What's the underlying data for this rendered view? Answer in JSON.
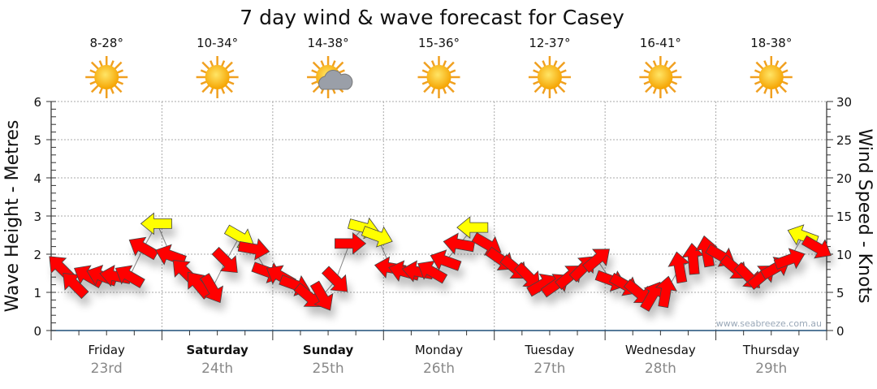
{
  "chart_data": {
    "type": "scatter",
    "title": "7 day wind & wave forecast for Casey",
    "ylabel_left": "Wave Height - Metres",
    "ylabel_right": "Wind Speed - Knots",
    "ylim_left": [
      0,
      6
    ],
    "ylim_right": [
      0,
      30
    ],
    "yticks_left": [
      "0",
      "1",
      "2",
      "3",
      "4",
      "5",
      "6"
    ],
    "yticks_right": [
      "0",
      "5",
      "10",
      "15",
      "20",
      "25",
      "30"
    ],
    "grid": true,
    "watermark": "www.seabreeze.com.au",
    "days": [
      {
        "name": "Friday",
        "date": "23rd",
        "temp": "8-28°",
        "icon": "sun-icon",
        "bold": false
      },
      {
        "name": "Saturday",
        "date": "24th",
        "temp": "10-34°",
        "icon": "sun-icon",
        "bold": true
      },
      {
        "name": "Sunday",
        "date": "25th",
        "temp": "14-38°",
        "icon": "sun-cloud-icon",
        "bold": true
      },
      {
        "name": "Monday",
        "date": "26th",
        "temp": "15-36°",
        "icon": "sun-icon",
        "bold": false
      },
      {
        "name": "Tuesday",
        "date": "27th",
        "temp": "12-37°",
        "icon": "sun-icon",
        "bold": false
      },
      {
        "name": "Wednesday",
        "date": "28th",
        "temp": "16-41°",
        "icon": "sun-icon",
        "bold": false
      },
      {
        "name": "Thursday",
        "date": "29th",
        "temp": "18-38°",
        "icon": "sun-icon",
        "bold": false
      }
    ],
    "wind_knots": [
      8.2,
      6.0,
      7.1,
      7.1,
      7.1,
      7.1,
      10.8,
      14.0,
      9.8,
      7.7,
      6.0,
      5.5,
      9.1,
      12.3,
      10.7,
      7.7,
      7.1,
      6.0,
      4.5,
      4.5,
      6.6,
      11.4,
      13.5,
      12.4,
      8.2,
      7.7,
      7.7,
      7.7,
      9.1,
      11.3,
      13.5,
      11.3,
      9.3,
      8.2,
      7.1,
      6.0,
      6.0,
      7.1,
      8.2,
      9.3,
      6.6,
      6.0,
      5.0,
      4.5,
      5.0,
      8.2,
      9.3,
      10.3,
      9.8,
      8.2,
      7.1,
      7.1,
      8.2,
      9.3,
      12.4,
      10.9
    ],
    "wind_arrow_angle_deg": [
      135,
      135,
      150,
      160,
      170,
      150,
      150,
      180,
      160,
      135,
      130,
      -60,
      -45,
      -30,
      -10,
      -20,
      150,
      -20,
      -40,
      -60,
      -45,
      0,
      -15,
      -20,
      170,
      165,
      170,
      150,
      160,
      170,
      180,
      -30,
      -35,
      -40,
      -45,
      30,
      35,
      40,
      45,
      40,
      -20,
      -30,
      -40,
      60,
      80,
      100,
      95,
      100,
      -30,
      -40,
      -45,
      40,
      30,
      20,
      160,
      -30
    ],
    "colors": {
      "calm": "#ff0000",
      "strong": "#ffff00",
      "axis": "#1f4e79",
      "grid": "#aaaaaa"
    },
    "strong_threshold_knots": 12
  }
}
